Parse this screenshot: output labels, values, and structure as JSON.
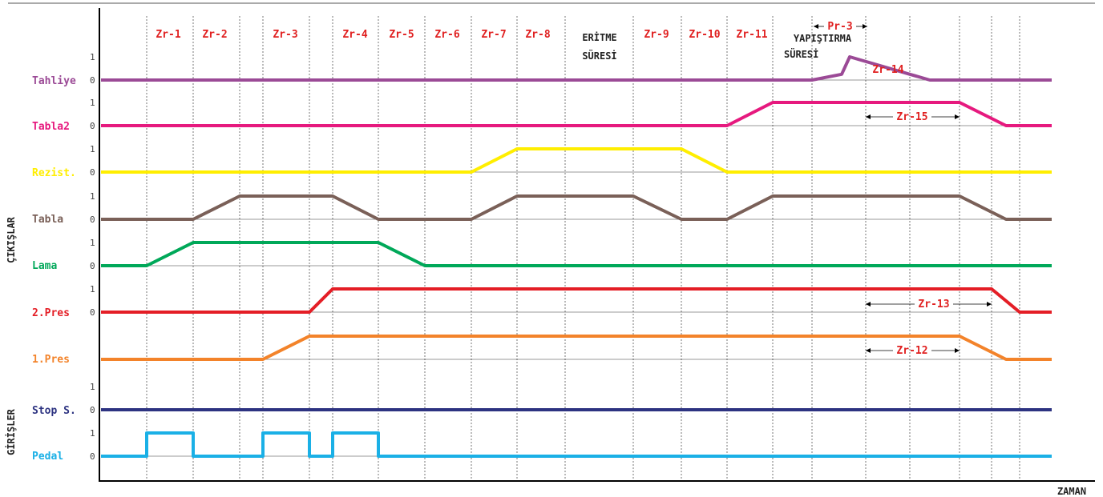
{
  "title_rule": true,
  "colors": {
    "tahliye": "#9b4a96",
    "tabla2": "#e6197e",
    "rezist": "#ffee00",
    "tabla": "#7a6058",
    "lama": "#00a859",
    "pres2": "#e41e26",
    "pres1": "#f3832a",
    "stop": "#2d3381",
    "pedal": "#1ab0e6",
    "zr": "#e02020"
  },
  "groups": {
    "outputs": "ÇIKIŞLAR",
    "inputs": "GİRİŞLER"
  },
  "axis": {
    "x_label": "ZAMAN"
  },
  "tick_labels": {
    "high": "1",
    "low": "0"
  },
  "signals": [
    {
      "name": "Tahliye",
      "color_key": "tahliye",
      "show_ticks": true,
      "points": [
        [
          0,
          0
        ],
        [
          10,
          0
        ],
        [
          10.5,
          0.25
        ],
        [
          11,
          1
        ],
        [
          11.5,
          0.25
        ],
        [
          12,
          0
        ],
        [
          14,
          0
        ]
      ]
    },
    {
      "name": "Tabla2",
      "color_key": "tabla2",
      "show_ticks": true,
      "points": [
        [
          0,
          0
        ],
        [
          8.5,
          0
        ],
        [
          9,
          1
        ],
        [
          12.5,
          1
        ],
        [
          13,
          0
        ],
        [
          14,
          0
        ]
      ]
    },
    {
      "name": "Rezist.",
      "color_key": "rezist",
      "show_ticks": true,
      "points": [
        [
          0,
          0
        ],
        [
          5.5,
          0
        ],
        [
          6,
          1
        ],
        [
          8,
          1
        ],
        [
          8.5,
          0
        ],
        [
          14,
          0
        ]
      ]
    },
    {
      "name": "Tabla",
      "color_key": "tabla",
      "show_ticks": true,
      "points": [
        [
          0,
          0
        ],
        [
          1.5,
          0
        ],
        [
          2,
          1
        ],
        [
          4,
          1
        ],
        [
          4.5,
          0
        ],
        [
          5.5,
          0
        ],
        [
          6,
          1
        ],
        [
          7,
          1
        ],
        [
          7.5,
          0
        ],
        [
          8.5,
          0
        ],
        [
          9,
          1
        ],
        [
          12.5,
          1
        ],
        [
          13,
          0
        ],
        [
          14,
          0
        ]
      ]
    },
    {
      "name": "Lama",
      "color_key": "lama",
      "show_ticks": true,
      "points": [
        [
          0,
          0
        ],
        [
          1,
          0
        ],
        [
          1.5,
          1
        ],
        [
          4.5,
          1
        ],
        [
          5,
          0
        ],
        [
          14,
          0
        ]
      ]
    },
    {
      "name": "2.Pres",
      "color_key": "pres2",
      "show_ticks": true,
      "points": [
        [
          0,
          0
        ],
        [
          3.5,
          0
        ],
        [
          4,
          1
        ],
        [
          12.75,
          1
        ],
        [
          13.2,
          0
        ],
        [
          14,
          0
        ]
      ]
    },
    {
      "name": "1.Pres",
      "color_key": "pres1",
      "show_ticks": false,
      "points": [
        [
          0,
          0
        ],
        [
          3,
          0
        ],
        [
          3.5,
          1
        ],
        [
          12.5,
          1
        ],
        [
          13,
          0
        ],
        [
          14,
          0
        ]
      ]
    },
    {
      "name": "Stop S.",
      "color_key": "stop",
      "show_ticks": true,
      "points": [
        [
          0,
          0
        ],
        [
          14,
          0
        ]
      ]
    },
    {
      "name": "Pedal",
      "color_key": "pedal",
      "show_ticks": true,
      "points": [
        [
          0,
          0
        ],
        [
          1,
          0
        ],
        [
          1,
          1
        ],
        [
          1.5,
          1
        ],
        [
          1.5,
          0
        ],
        [
          3,
          0
        ],
        [
          3,
          1
        ],
        [
          3.5,
          1
        ],
        [
          3.5,
          0
        ],
        [
          4,
          0
        ],
        [
          4,
          1
        ],
        [
          4.5,
          1
        ],
        [
          4.5,
          0
        ],
        [
          14,
          0
        ]
      ]
    }
  ],
  "zr_labels": [
    "Zr-1",
    "Zr-2",
    "Zr-3",
    "Zr-4",
    "Zr-5",
    "Zr-6",
    "Zr-7",
    "Zr-8",
    "Zr-9",
    "Zr-10",
    "Zr-11"
  ],
  "phase_notes": {
    "eritme_1": "ERİTME",
    "eritme_2": "SÜRESİ",
    "yapistirma_1": "YAPIŞTIRMA",
    "yapistirma_2": "SÜRESİ"
  },
  "interval_labels": {
    "pr3": "Pr-3",
    "zr14": "Zr-14",
    "zr15": "Zr-15",
    "zr13": "Zr-13",
    "zr12": "Zr-12"
  }
}
